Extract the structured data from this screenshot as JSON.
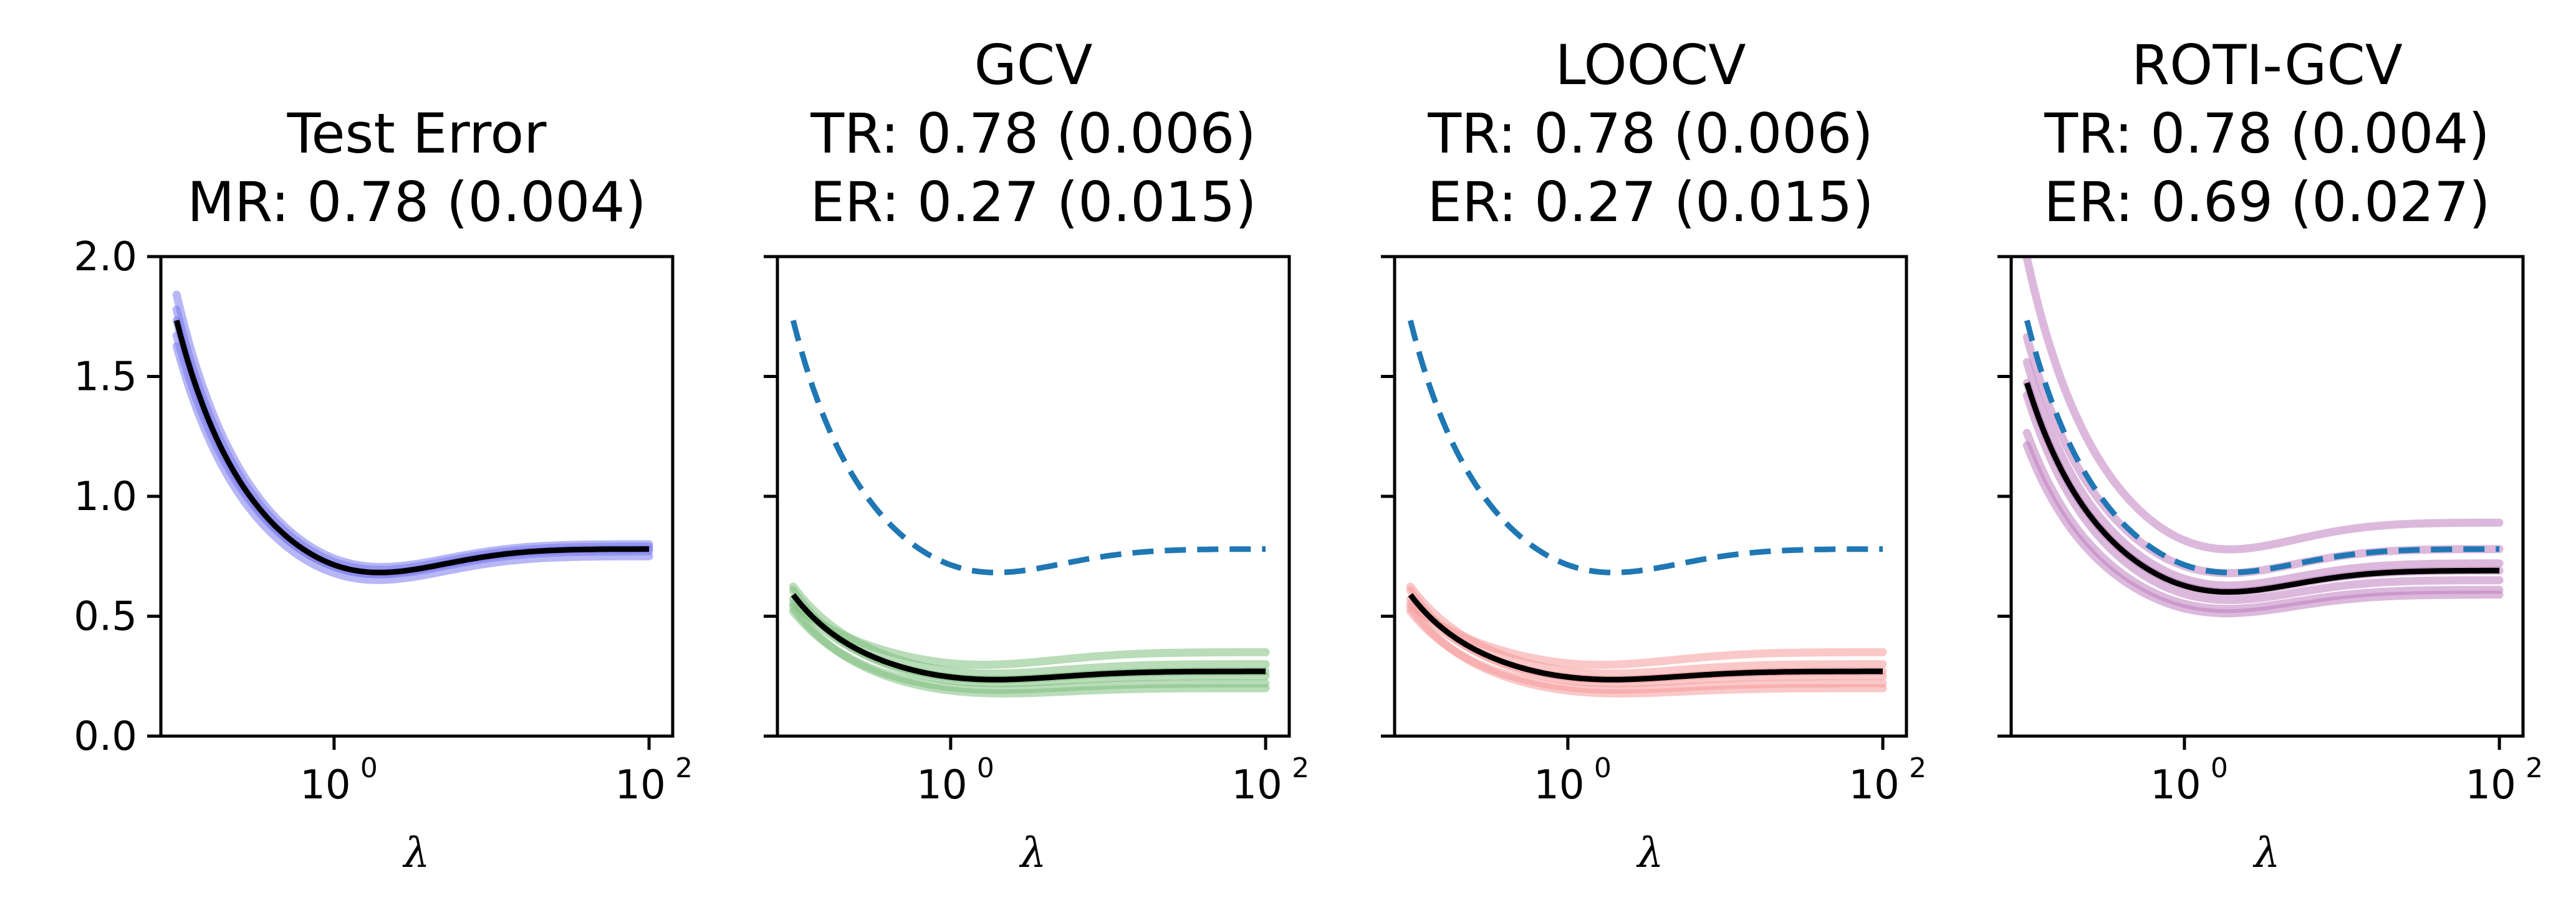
{
  "chart_data": [
    {
      "type": "line",
      "title_lines": [
        "Test Error",
        "MR: 0.78 (0.004)"
      ],
      "xlabel": "λ",
      "ylabel": "",
      "xscale": "log",
      "xlim_log10": [
        -1.1,
        2.15
      ],
      "ylim": [
        0,
        2
      ],
      "yticks": [
        "0.0",
        "0.5",
        "1.0",
        "1.5",
        "2.0"
      ],
      "xticks": [
        {
          "base": "10",
          "exp": "0",
          "log10": 0
        },
        {
          "base": "10",
          "exp": "2",
          "log10": 2
        }
      ],
      "show_ytick_labels": true,
      "band_color": "#7b7bef",
      "reference_color": "#1f77b4",
      "mean_color": "#000000",
      "series": [
        {
          "name": "test-error-mean",
          "role": "mean",
          "a": 0.78,
          "s": 1.0,
          "o": 0.0
        }
      ],
      "band_series": [
        {
          "name": "trial-1",
          "a": 0.78,
          "s": 1.05,
          "o": 0.02
        },
        {
          "name": "trial-2",
          "a": 0.77,
          "s": 1.0,
          "o": 0.0
        },
        {
          "name": "trial-3",
          "a": 0.79,
          "s": 0.97,
          "o": -0.01
        },
        {
          "name": "trial-4",
          "a": 0.78,
          "s": 1.02,
          "o": 0.01
        },
        {
          "name": "trial-5",
          "a": 0.77,
          "s": 0.95,
          "o": -0.02
        }
      ]
    },
    {
      "type": "line",
      "title_lines": [
        "GCV",
        "TR: 0.78 (0.006)",
        "ER: 0.27 (0.015)"
      ],
      "xlabel": "λ",
      "ylabel": "",
      "xscale": "log",
      "xlim_log10": [
        -1.1,
        2.15
      ],
      "ylim": [
        0,
        2
      ],
      "yticks": [
        "0.0",
        "0.5",
        "1.0",
        "1.5",
        "2.0"
      ],
      "xticks": [
        {
          "base": "10",
          "exp": "0",
          "log10": 0
        },
        {
          "base": "10",
          "exp": "2",
          "log10": 2
        }
      ],
      "show_ytick_labels": false,
      "band_color": "#7fc07f",
      "reference_color": "#1f77b4",
      "mean_color": "#000000",
      "series": [
        {
          "name": "test-error-reference",
          "role": "reference",
          "a": 0.78,
          "s": 1.0,
          "o": 0.0
        },
        {
          "name": "gcv-mean",
          "role": "mean",
          "a": 0.27,
          "s": 0.34,
          "o": 0.0
        }
      ],
      "band_series": [
        {
          "name": "trial-1",
          "a": 0.35,
          "s": 0.32,
          "o": 0.0
        },
        {
          "name": "trial-2",
          "a": 0.3,
          "s": 0.36,
          "o": 0.0
        },
        {
          "name": "trial-3",
          "a": 0.27,
          "s": 0.33,
          "o": 0.0
        },
        {
          "name": "trial-4",
          "a": 0.25,
          "s": 0.35,
          "o": 0.0
        },
        {
          "name": "trial-5",
          "a": 0.22,
          "s": 0.3,
          "o": 0.0
        },
        {
          "name": "trial-6",
          "a": 0.2,
          "s": 0.31,
          "o": 0.0
        }
      ]
    },
    {
      "type": "line",
      "title_lines": [
        "LOOCV",
        "TR: 0.78 (0.006)",
        "ER: 0.27 (0.015)"
      ],
      "xlabel": "λ",
      "ylabel": "",
      "xscale": "log",
      "xlim_log10": [
        -1.1,
        2.15
      ],
      "ylim": [
        0,
        2
      ],
      "yticks": [
        "0.0",
        "0.5",
        "1.0",
        "1.5",
        "2.0"
      ],
      "xticks": [
        {
          "base": "10",
          "exp": "0",
          "log10": 0
        },
        {
          "base": "10",
          "exp": "2",
          "log10": 2
        }
      ],
      "show_ytick_labels": false,
      "band_color": "#f59a9a",
      "reference_color": "#1f77b4",
      "mean_color": "#000000",
      "series": [
        {
          "name": "test-error-reference",
          "role": "reference",
          "a": 0.78,
          "s": 1.0,
          "o": 0.0
        },
        {
          "name": "loocv-mean",
          "role": "mean",
          "a": 0.27,
          "s": 0.34,
          "o": 0.0
        }
      ],
      "band_series": [
        {
          "name": "trial-1",
          "a": 0.35,
          "s": 0.32,
          "o": 0.0
        },
        {
          "name": "trial-2",
          "a": 0.3,
          "s": 0.36,
          "o": 0.0
        },
        {
          "name": "trial-3",
          "a": 0.27,
          "s": 0.33,
          "o": 0.0
        },
        {
          "name": "trial-4",
          "a": 0.25,
          "s": 0.35,
          "o": 0.0
        },
        {
          "name": "trial-5",
          "a": 0.22,
          "s": 0.3,
          "o": 0.0
        },
        {
          "name": "trial-6",
          "a": 0.2,
          "s": 0.31,
          "o": 0.0
        }
      ]
    },
    {
      "type": "line",
      "title_lines": [
        "ROTI-GCV",
        "TR: 0.78 (0.004)",
        "ER: 0.69 (0.027)"
      ],
      "xlabel": "λ",
      "ylabel": "",
      "xscale": "log",
      "xlim_log10": [
        -1.1,
        2.15
      ],
      "ylim": [
        0,
        2
      ],
      "yticks": [
        "0.0",
        "0.5",
        "1.0",
        "1.5",
        "2.0"
      ],
      "xticks": [
        {
          "base": "10",
          "exp": "0",
          "log10": 0
        },
        {
          "base": "10",
          "exp": "2",
          "log10": 2
        }
      ],
      "show_ytick_labels": false,
      "band_color": "#c07fc0",
      "reference_color": "#1f77b4",
      "mean_color": "#000000",
      "series": [
        {
          "name": "test-error-reference",
          "role": "reference",
          "a": 0.78,
          "s": 1.0,
          "o": 0.0
        },
        {
          "name": "roti-gcv-mean",
          "role": "mean",
          "a": 0.69,
          "s": 0.85,
          "o": 0.0
        }
      ],
      "band_series": [
        {
          "name": "trial-1",
          "a": 0.89,
          "s": 1.15,
          "o": 0.0
        },
        {
          "name": "trial-2",
          "a": 0.78,
          "s": 0.96,
          "o": 0.0
        },
        {
          "name": "trial-3",
          "a": 0.72,
          "s": 0.9,
          "o": 0.0
        },
        {
          "name": "trial-4",
          "a": 0.69,
          "s": 0.85,
          "o": 0.0
        },
        {
          "name": "trial-5",
          "a": 0.65,
          "s": 0.82,
          "o": 0.0
        },
        {
          "name": "trial-6",
          "a": 0.61,
          "s": 0.73,
          "o": 0.0
        },
        {
          "name": "trial-7",
          "a": 0.59,
          "s": 0.7,
          "o": 0.0
        }
      ]
    }
  ]
}
